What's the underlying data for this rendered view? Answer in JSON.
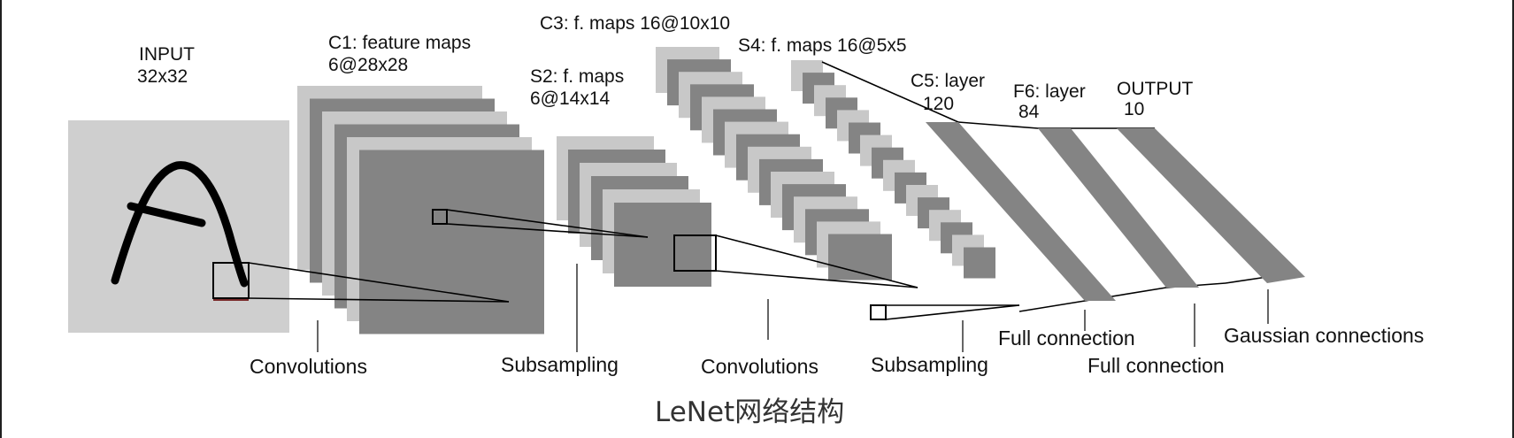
{
  "colors": {
    "light_map": "#c8c8c8",
    "dark_map": "#848484",
    "input_bg": "#cfcfcf",
    "stroke": "#000000",
    "text": "#111111",
    "caption": "#333333"
  },
  "layers": {
    "input": {
      "line1": "INPUT",
      "line2": "32x32"
    },
    "c1": {
      "line1": "C1: feature maps",
      "line2": "6@28x28"
    },
    "s2": {
      "line1": "S2: f. maps",
      "line2": "6@14x14"
    },
    "c3": {
      "line1": "C3: f. maps 16@10x10"
    },
    "s4": {
      "line1": "S4: f. maps 16@5x5"
    },
    "c5": {
      "line1": "C5: layer",
      "line2": "120"
    },
    "f6": {
      "line1": "F6: layer",
      "line2": "84"
    },
    "output": {
      "line1": "OUTPUT",
      "line2": "10"
    }
  },
  "operations": {
    "conv1": "Convolutions",
    "sub1": "Subsampling",
    "conv2": "Convolutions",
    "sub2": "Subsampling",
    "full1": "Full connection",
    "full2": "Full connection",
    "gauss": "Gaussian connections"
  },
  "caption": "LeNet网络结构"
}
